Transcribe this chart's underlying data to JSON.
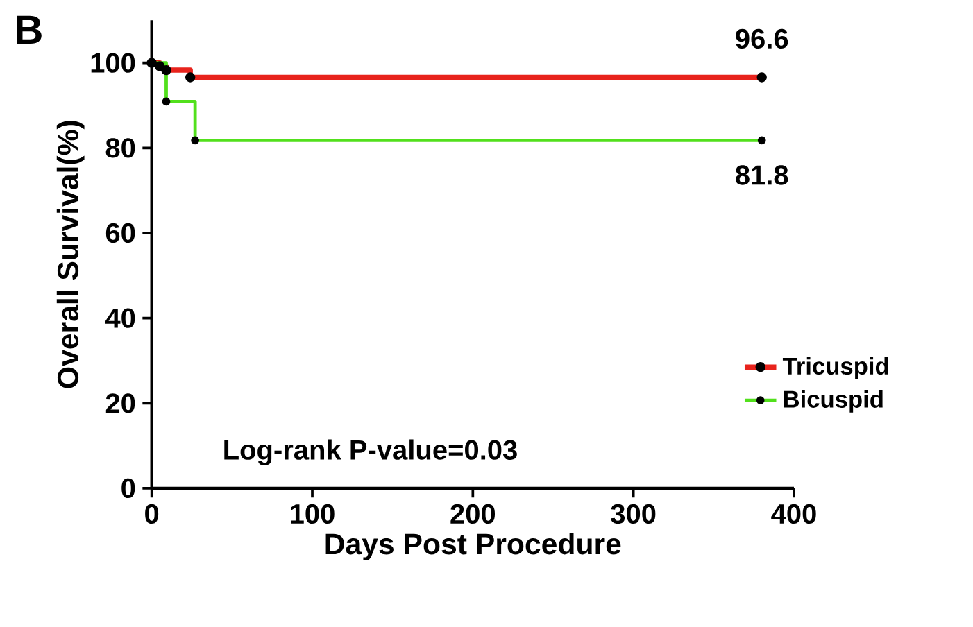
{
  "chart_data": {
    "type": "step",
    "title": "B",
    "xlabel": "Days Post Procedure",
    "ylabel": "Overall Survival(%)",
    "series": [
      {
        "name": "Tricuspid",
        "color": "#e8231c",
        "x": [
          0,
          5,
          9,
          24,
          380
        ],
        "values": [
          100,
          99.2,
          98.3,
          96.6,
          96.6
        ]
      },
      {
        "name": "Bicuspid",
        "color": "#52e01c",
        "x": [
          0,
          9,
          27,
          380
        ],
        "values": [
          100,
          90.9,
          81.8,
          81.8
        ]
      }
    ],
    "xlim": [
      0,
      400
    ],
    "ylim": [
      0,
      110
    ],
    "xticks": [
      0,
      100,
      200,
      300,
      400
    ],
    "yticks": [
      0,
      20,
      40,
      60,
      80,
      100
    ],
    "annotations": [
      {
        "text": "96.6",
        "x": 380,
        "y": 96.6
      },
      {
        "text": "81.8",
        "x": 380,
        "y": 81.8
      },
      "Log-rank P-value=0.03"
    ],
    "legend": "right",
    "marker": "circle",
    "grid": false
  }
}
